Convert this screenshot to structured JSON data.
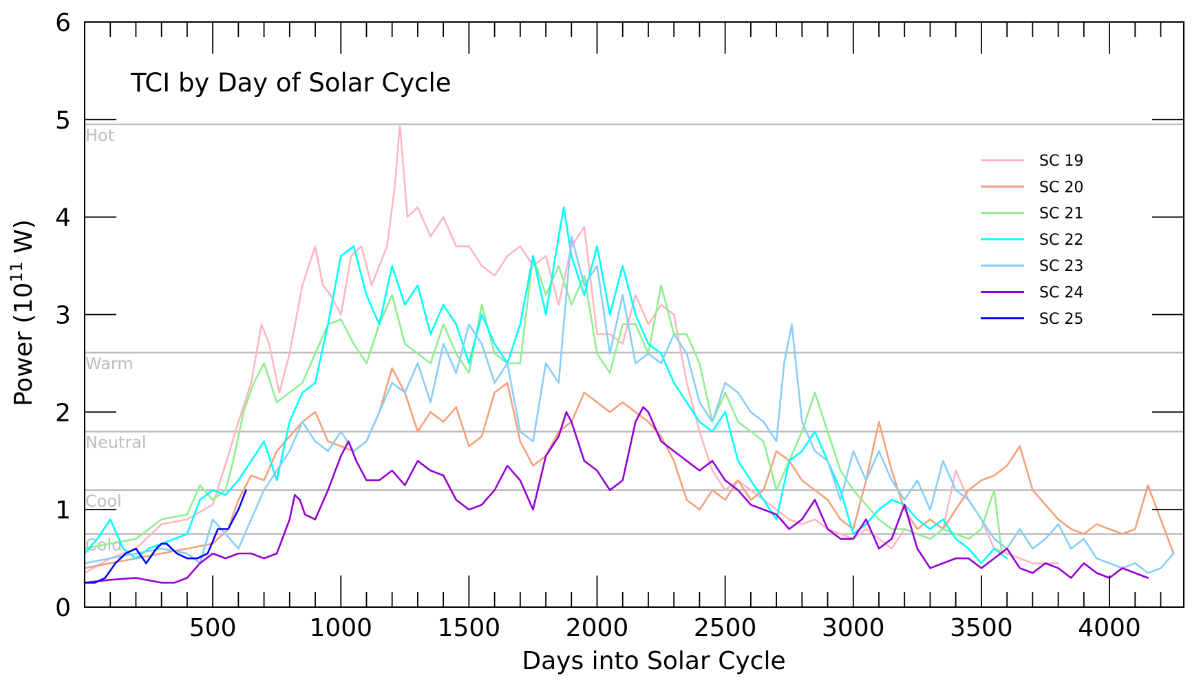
{
  "chart_data": {
    "type": "line",
    "title": "TCI by Day of Solar Cycle",
    "xlabel": "Days into Solar Cycle",
    "ylabel_main": "Power (10",
    "ylabel_sup": "11",
    "ylabel_end": " W)",
    "xlim": [
      0,
      4290
    ],
    "ylim": [
      0,
      6
    ],
    "x_ticks": [
      500,
      1000,
      1500,
      2000,
      2500,
      3000,
      3500,
      4000
    ],
    "y_ticks": [
      0,
      1,
      2,
      3,
      4,
      5,
      6
    ],
    "legend_position": "top-right",
    "bands": [
      {
        "label": "Hot",
        "y": 4.95
      },
      {
        "label": "Warm",
        "y": 2.61
      },
      {
        "label": "Neutral",
        "y": 1.8
      },
      {
        "label": "Cool",
        "y": 1.2
      },
      {
        "label": "Cold",
        "y": 0.75
      }
    ],
    "series": [
      {
        "name": "SC 19",
        "color": "#ffb6c1",
        "x": [
          0,
          100,
          200,
          300,
          400,
          500,
          560,
          600,
          650,
          690,
          720,
          760,
          800,
          850,
          900,
          930,
          960,
          1000,
          1040,
          1080,
          1120,
          1150,
          1180,
          1210,
          1230,
          1260,
          1300,
          1350,
          1400,
          1450,
          1500,
          1550,
          1600,
          1650,
          1700,
          1750,
          1800,
          1850,
          1900,
          1950,
          2000,
          2050,
          2100,
          2150,
          2200,
          2250,
          2300,
          2350,
          2400,
          2450,
          2500,
          2550,
          2600,
          2650,
          2700,
          2750,
          2800,
          2850,
          2900,
          2950,
          3000,
          3050,
          3100,
          3150,
          3200,
          3250,
          3300,
          3350,
          3400,
          3450,
          3500,
          3550,
          3600,
          3650,
          3700,
          3750,
          3800
        ],
        "y": [
          0.35,
          0.5,
          0.6,
          0.85,
          0.9,
          1.05,
          1.55,
          1.9,
          2.3,
          2.9,
          2.7,
          2.2,
          2.6,
          3.3,
          3.7,
          3.3,
          3.2,
          3.0,
          3.6,
          3.7,
          3.3,
          3.5,
          3.7,
          4.3,
          4.95,
          4.0,
          4.1,
          3.8,
          4.0,
          3.7,
          3.7,
          3.5,
          3.4,
          3.6,
          3.7,
          3.5,
          3.6,
          3.1,
          3.7,
          3.9,
          2.8,
          2.8,
          2.7,
          3.2,
          2.9,
          3.1,
          3.0,
          2.3,
          1.8,
          1.4,
          1.2,
          1.3,
          1.2,
          1.1,
          1.0,
          0.9,
          0.85,
          0.9,
          0.8,
          0.75,
          0.7,
          0.8,
          0.7,
          0.6,
          0.8,
          0.75,
          0.7,
          0.8,
          1.4,
          1.1,
          0.9,
          0.6,
          0.55,
          0.5,
          0.45,
          0.45,
          0.45
        ]
      },
      {
        "name": "SC 20",
        "color": "#f4a07a",
        "x": [
          0,
          100,
          200,
          300,
          400,
          500,
          560,
          600,
          650,
          700,
          750,
          800,
          850,
          900,
          950,
          1000,
          1050,
          1100,
          1150,
          1200,
          1250,
          1300,
          1350,
          1400,
          1450,
          1500,
          1550,
          1600,
          1650,
          1700,
          1750,
          1800,
          1850,
          1900,
          1950,
          2000,
          2050,
          2100,
          2150,
          2200,
          2250,
          2300,
          2350,
          2400,
          2450,
          2500,
          2550,
          2600,
          2650,
          2700,
          2750,
          2800,
          2850,
          2900,
          2950,
          3000,
          3050,
          3100,
          3150,
          3200,
          3250,
          3300,
          3350,
          3400,
          3450,
          3500,
          3550,
          3600,
          3650,
          3700,
          3750,
          3800,
          3850,
          3900,
          3950,
          4000,
          4050,
          4100,
          4150,
          4200,
          4250
        ],
        "y": [
          0.4,
          0.45,
          0.5,
          0.55,
          0.6,
          0.65,
          0.8,
          1.1,
          1.35,
          1.3,
          1.6,
          1.75,
          1.9,
          2.0,
          1.7,
          1.65,
          1.6,
          1.7,
          2.0,
          2.45,
          2.2,
          1.8,
          2.0,
          1.9,
          2.05,
          1.65,
          1.75,
          2.2,
          2.3,
          1.7,
          1.45,
          1.55,
          1.8,
          1.9,
          2.2,
          2.1,
          2.0,
          2.1,
          2.0,
          1.9,
          1.75,
          1.5,
          1.1,
          1.0,
          1.2,
          1.1,
          1.3,
          1.1,
          1.2,
          1.6,
          1.5,
          1.3,
          1.2,
          1.1,
          0.9,
          0.8,
          1.3,
          1.9,
          1.4,
          1.0,
          0.8,
          0.9,
          0.8,
          1.0,
          1.2,
          1.3,
          1.35,
          1.45,
          1.65,
          1.2,
          1.05,
          0.9,
          0.8,
          0.75,
          0.85,
          0.8,
          0.75,
          0.8,
          1.25,
          0.9,
          0.55
        ]
      },
      {
        "name": "SC 21",
        "color": "#90ee90",
        "x": [
          0,
          100,
          200,
          300,
          400,
          450,
          500,
          550,
          580,
          620,
          660,
          700,
          750,
          800,
          850,
          900,
          950,
          1000,
          1050,
          1100,
          1150,
          1200,
          1250,
          1300,
          1350,
          1400,
          1450,
          1500,
          1550,
          1600,
          1650,
          1700,
          1750,
          1800,
          1850,
          1900,
          1950,
          2000,
          2050,
          2100,
          2150,
          2200,
          2250,
          2300,
          2350,
          2400,
          2450,
          2500,
          2550,
          2600,
          2650,
          2700,
          2750,
          2800,
          2850,
          2900,
          2950,
          3000,
          3050,
          3100,
          3150,
          3200,
          3250,
          3300,
          3350,
          3400,
          3450,
          3500,
          3550,
          3580
        ],
        "y": [
          0.6,
          0.65,
          0.7,
          0.9,
          0.95,
          1.25,
          1.1,
          1.2,
          1.5,
          2.0,
          2.3,
          2.5,
          2.1,
          2.2,
          2.3,
          2.6,
          2.9,
          2.95,
          2.7,
          2.5,
          2.9,
          3.2,
          2.7,
          2.6,
          2.5,
          2.9,
          2.6,
          2.4,
          3.1,
          2.6,
          2.5,
          2.5,
          3.6,
          3.2,
          3.5,
          3.1,
          3.4,
          2.6,
          2.4,
          2.9,
          2.9,
          2.6,
          3.3,
          2.8,
          2.8,
          2.5,
          1.9,
          2.2,
          1.9,
          1.8,
          1.7,
          1.2,
          1.5,
          1.8,
          2.2,
          1.8,
          1.4,
          1.2,
          1.05,
          0.9,
          0.8,
          0.8,
          0.75,
          0.7,
          0.8,
          0.75,
          0.7,
          0.8,
          1.2,
          0.55
        ]
      },
      {
        "name": "SC 22",
        "color": "#00ffff",
        "x": [
          0,
          50,
          100,
          150,
          200,
          250,
          300,
          350,
          400,
          450,
          500,
          550,
          600,
          650,
          700,
          750,
          800,
          850,
          900,
          950,
          1000,
          1050,
          1100,
          1150,
          1200,
          1250,
          1300,
          1350,
          1400,
          1450,
          1500,
          1550,
          1600,
          1650,
          1700,
          1750,
          1800,
          1850,
          1870,
          1900,
          1950,
          2000,
          2050,
          2100,
          2150,
          2200,
          2250,
          2300,
          2350,
          2400,
          2450,
          2500,
          2550,
          2600,
          2650,
          2700,
          2750,
          2800,
          2850,
          2900,
          2950,
          3000,
          3050,
          3100,
          3150,
          3200,
          3250,
          3300,
          3350,
          3400,
          3450,
          3500,
          3550,
          3600
        ],
        "y": [
          0.55,
          0.7,
          0.9,
          0.6,
          0.5,
          0.6,
          0.65,
          0.7,
          0.75,
          1.1,
          1.2,
          1.15,
          1.3,
          1.5,
          1.7,
          1.3,
          1.9,
          2.2,
          2.3,
          2.9,
          3.6,
          3.7,
          3.2,
          2.9,
          3.5,
          3.1,
          3.3,
          2.8,
          3.1,
          2.9,
          2.5,
          3.0,
          2.7,
          2.5,
          2.9,
          3.6,
          3.0,
          3.8,
          4.1,
          3.6,
          3.2,
          3.7,
          3.0,
          3.5,
          3.0,
          2.7,
          2.6,
          2.3,
          2.1,
          1.9,
          1.8,
          2.0,
          1.5,
          1.3,
          1.1,
          0.9,
          1.5,
          1.6,
          1.8,
          1.5,
          1.2,
          0.75,
          0.85,
          1.0,
          1.1,
          1.05,
          0.9,
          0.8,
          0.9,
          0.7,
          0.6,
          0.45,
          0.6,
          0.5
        ]
      },
      {
        "name": "SC 23",
        "color": "#87cefa",
        "x": [
          0,
          100,
          200,
          300,
          400,
          450,
          500,
          550,
          600,
          650,
          700,
          750,
          800,
          850,
          900,
          950,
          1000,
          1050,
          1100,
          1150,
          1200,
          1250,
          1300,
          1350,
          1400,
          1450,
          1500,
          1550,
          1600,
          1650,
          1700,
          1750,
          1800,
          1850,
          1900,
          1950,
          2000,
          2050,
          2100,
          2150,
          2200,
          2250,
          2300,
          2350,
          2400,
          2450,
          2500,
          2550,
          2600,
          2650,
          2700,
          2730,
          2760,
          2800,
          2850,
          2900,
          2950,
          3000,
          3050,
          3100,
          3150,
          3200,
          3250,
          3300,
          3350,
          3400,
          3450,
          3500,
          3550,
          3600,
          3650,
          3700,
          3750,
          3800,
          3850,
          3900,
          3950,
          4000,
          4050,
          4100,
          4150,
          4200,
          4250
        ],
        "y": [
          0.45,
          0.5,
          0.55,
          0.6,
          0.55,
          0.45,
          0.9,
          0.75,
          0.6,
          0.9,
          1.2,
          1.4,
          1.6,
          1.9,
          1.7,
          1.6,
          1.8,
          1.6,
          1.7,
          2.0,
          2.3,
          2.2,
          2.5,
          2.1,
          2.7,
          2.4,
          2.9,
          2.7,
          2.3,
          2.5,
          1.8,
          1.7,
          2.5,
          2.3,
          3.8,
          3.3,
          3.5,
          2.6,
          3.2,
          2.5,
          2.6,
          2.5,
          2.8,
          2.6,
          2.1,
          1.9,
          2.3,
          2.2,
          2.0,
          1.9,
          1.7,
          2.5,
          2.9,
          1.9,
          1.6,
          1.5,
          1.1,
          1.6,
          1.3,
          1.6,
          1.3,
          1.1,
          1.3,
          1.0,
          1.5,
          1.2,
          1.1,
          0.9,
          0.7,
          0.6,
          0.8,
          0.6,
          0.7,
          0.85,
          0.6,
          0.7,
          0.5,
          0.45,
          0.4,
          0.45,
          0.35,
          0.4,
          0.55
        ]
      },
      {
        "name": "SC 24",
        "color": "#9400d3",
        "x": [
          0,
          100,
          200,
          300,
          350,
          400,
          450,
          500,
          550,
          600,
          650,
          700,
          750,
          800,
          820,
          840,
          860,
          900,
          950,
          1000,
          1030,
          1060,
          1100,
          1150,
          1200,
          1250,
          1300,
          1350,
          1400,
          1450,
          1500,
          1550,
          1600,
          1650,
          1700,
          1750,
          1800,
          1850,
          1880,
          1900,
          1950,
          2000,
          2050,
          2100,
          2150,
          2180,
          2200,
          2250,
          2300,
          2350,
          2400,
          2450,
          2500,
          2550,
          2600,
          2650,
          2700,
          2750,
          2800,
          2850,
          2900,
          2950,
          3000,
          3050,
          3100,
          3150,
          3200,
          3250,
          3300,
          3350,
          3400,
          3450,
          3500,
          3550,
          3600,
          3650,
          3700,
          3750,
          3800,
          3850,
          3900,
          3950,
          4000,
          4050,
          4100,
          4150
        ],
        "y": [
          0.25,
          0.28,
          0.3,
          0.25,
          0.25,
          0.3,
          0.45,
          0.55,
          0.5,
          0.55,
          0.55,
          0.5,
          0.55,
          0.9,
          1.15,
          1.1,
          0.95,
          0.9,
          1.2,
          1.55,
          1.7,
          1.5,
          1.3,
          1.3,
          1.4,
          1.25,
          1.5,
          1.4,
          1.35,
          1.1,
          1.0,
          1.05,
          1.2,
          1.45,
          1.3,
          1.0,
          1.55,
          1.75,
          2.0,
          1.9,
          1.5,
          1.4,
          1.2,
          1.3,
          1.9,
          2.05,
          2.0,
          1.7,
          1.6,
          1.5,
          1.4,
          1.5,
          1.3,
          1.2,
          1.05,
          1.0,
          0.95,
          0.8,
          0.9,
          1.1,
          0.8,
          0.7,
          0.7,
          0.9,
          0.6,
          0.7,
          1.05,
          0.6,
          0.4,
          0.45,
          0.5,
          0.5,
          0.4,
          0.5,
          0.6,
          0.4,
          0.35,
          0.45,
          0.4,
          0.3,
          0.45,
          0.35,
          0.3,
          0.4,
          0.35,
          0.3
        ]
      },
      {
        "name": "SC 25",
        "color": "#0000ff",
        "x": [
          0,
          40,
          80,
          120,
          160,
          200,
          240,
          280,
          300,
          320,
          360,
          400,
          440,
          480,
          520,
          560,
          600,
          630
        ],
        "y": [
          0.25,
          0.25,
          0.3,
          0.45,
          0.55,
          0.6,
          0.45,
          0.6,
          0.65,
          0.65,
          0.55,
          0.5,
          0.5,
          0.55,
          0.8,
          0.8,
          1.0,
          1.2
        ]
      }
    ]
  }
}
